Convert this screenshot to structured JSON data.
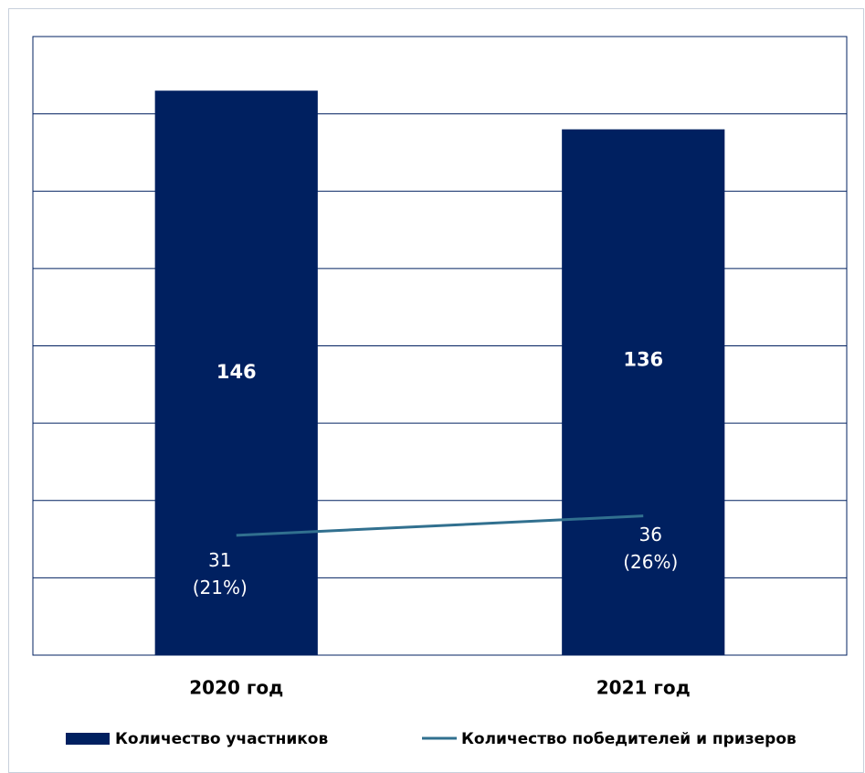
{
  "chart_data": {
    "type": "bar_line",
    "categories": [
      "2020 год",
      "2021 год"
    ],
    "series": [
      {
        "name": "Количество участников",
        "type": "bar",
        "color": "#002060",
        "values": [
          146,
          136
        ]
      },
      {
        "name": "Количество победителей и призеров",
        "type": "line",
        "color": "#31708f",
        "values": [
          31,
          36
        ],
        "value_labels": [
          "31\n(21%)",
          "36\n(26%)"
        ]
      }
    ],
    "ylim": [
      0,
      160
    ],
    "yticks": [
      0,
      20,
      40,
      60,
      80,
      100,
      120,
      140,
      160
    ],
    "grid": true,
    "legend": "bottom"
  }
}
